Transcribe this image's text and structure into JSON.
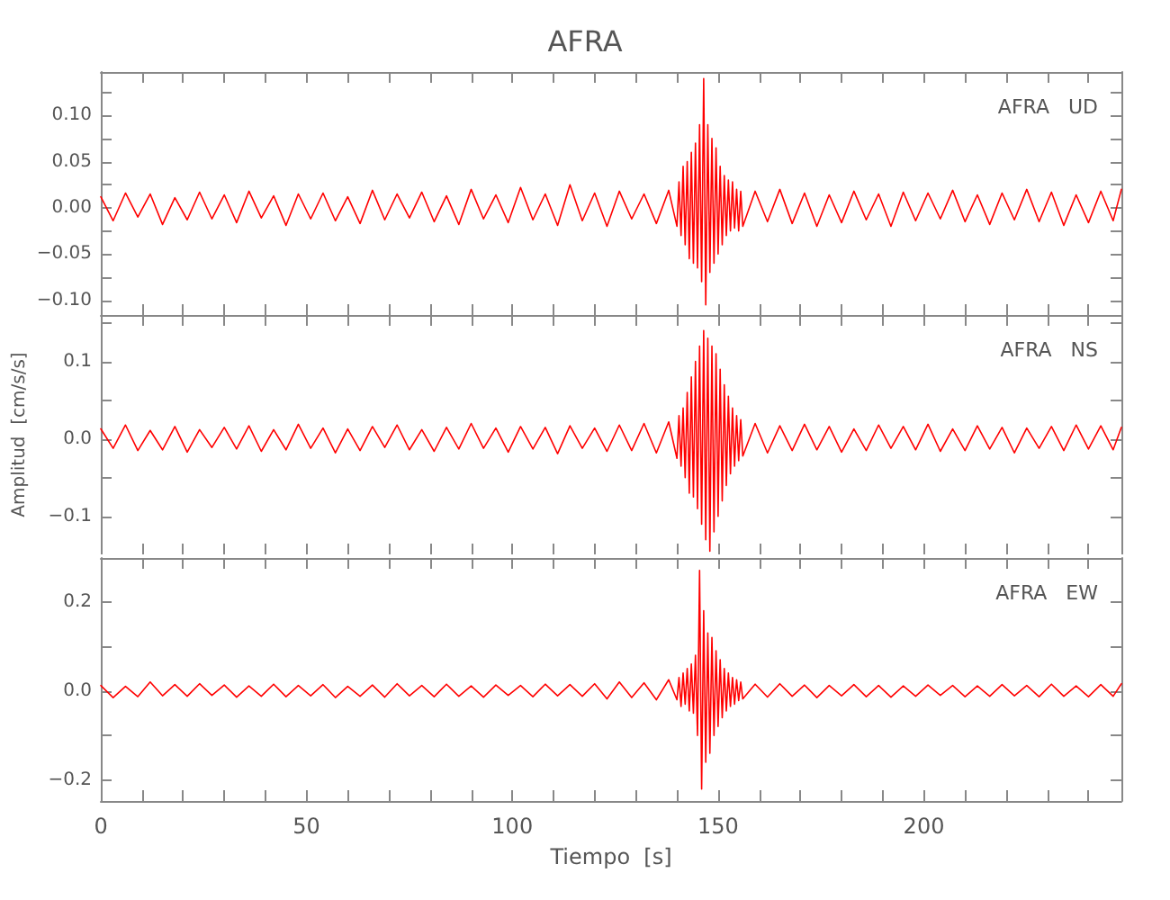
{
  "chart_data": [
    {
      "type": "line",
      "title": "AFRA",
      "annotations": [
        "AFRA   UD"
      ],
      "tick_labels": "y",
      "x": [
        0,
        3,
        6,
        9,
        12,
        15,
        18,
        21,
        24,
        27,
        30,
        33,
        36,
        39,
        42,
        45,
        48,
        51,
        54,
        57,
        60,
        63,
        66,
        69,
        72,
        75,
        78,
        81,
        84,
        87,
        90,
        93,
        96,
        99,
        102,
        105,
        108,
        111,
        114,
        117,
        120,
        123,
        126,
        129,
        132,
        135,
        138,
        140,
        140.5,
        141,
        141.5,
        142,
        142.5,
        143,
        143.5,
        144,
        144.5,
        145,
        145.5,
        146,
        146.5,
        147,
        147.5,
        148,
        148.5,
        149,
        149.5,
        150,
        150.5,
        151,
        151.5,
        152,
        152.5,
        153,
        153.5,
        154,
        154.5,
        155,
        155.5,
        156,
        159,
        162,
        165,
        168,
        171,
        174,
        177,
        180,
        183,
        186,
        189,
        192,
        195,
        198,
        201,
        204,
        207,
        210,
        213,
        216,
        219,
        222,
        225,
        228,
        231,
        234,
        237,
        240,
        243,
        246,
        248
      ],
      "series": [
        {
          "color": "#ff0000",
          "values": [
            0.012,
            -0.014,
            0.016,
            -0.01,
            0.015,
            -0.018,
            0.011,
            -0.013,
            0.017,
            -0.012,
            0.014,
            -0.016,
            0.018,
            -0.011,
            0.013,
            -0.019,
            0.015,
            -0.012,
            0.016,
            -0.014,
            0.012,
            -0.017,
            0.019,
            -0.013,
            0.015,
            -0.011,
            0.017,
            -0.015,
            0.013,
            -0.018,
            0.02,
            -0.012,
            0.014,
            -0.016,
            0.022,
            -0.013,
            0.015,
            -0.019,
            0.025,
            -0.014,
            0.016,
            -0.02,
            0.018,
            -0.012,
            0.015,
            -0.017,
            0.019,
            -0.02,
            0.028,
            -0.03,
            0.045,
            -0.04,
            0.05,
            -0.055,
            0.06,
            -0.06,
            0.07,
            -0.065,
            0.09,
            -0.08,
            0.14,
            -0.105,
            0.09,
            -0.07,
            0.075,
            -0.06,
            0.065,
            -0.05,
            0.045,
            -0.04,
            0.035,
            -0.03,
            0.03,
            -0.025,
            0.028,
            -0.022,
            0.02,
            -0.025,
            0.018,
            -0.02,
            0.018,
            -0.015,
            0.02,
            -0.017,
            0.016,
            -0.02,
            0.014,
            -0.016,
            0.018,
            -0.013,
            0.015,
            -0.02,
            0.017,
            -0.014,
            0.016,
            -0.012,
            0.019,
            -0.015,
            0.014,
            -0.018,
            0.016,
            -0.013,
            0.02,
            -0.015,
            0.017,
            -0.019,
            0.014,
            -0.016,
            0.018,
            -0.014,
            0.02
          ]
        }
      ],
      "xlim": [
        0,
        248
      ],
      "xticks": [
        0,
        {
          "value": 10,
          "label": null
        },
        {
          "value": 20,
          "label": null
        },
        {
          "value": 30,
          "label": null
        },
        {
          "value": 40,
          "label": null
        },
        50,
        {
          "value": 60,
          "label": null
        },
        {
          "value": 70,
          "label": null
        },
        {
          "value": 80,
          "label": null
        },
        {
          "value": 90,
          "label": null
        },
        100,
        {
          "value": 110,
          "label": null
        },
        {
          "value": 120,
          "label": null
        },
        {
          "value": 130,
          "label": null
        },
        {
          "value": 140,
          "label": null
        },
        150,
        {
          "value": 160,
          "label": null
        },
        {
          "value": 170,
          "label": null
        },
        {
          "value": 180,
          "label": null
        },
        {
          "value": 190,
          "label": null
        },
        200,
        {
          "value": 210,
          "label": null
        },
        {
          "value": 220,
          "label": null
        },
        {
          "value": 230,
          "label": null
        },
        {
          "value": 240,
          "label": null
        }
      ],
      "ylim": [
        -0.116,
        0.147
      ],
      "yticks": [
        {
          "value": -0.1,
          "label": "−0.10"
        },
        {
          "value": -0.075,
          "label": null
        },
        {
          "value": -0.05,
          "label": "−0.05"
        },
        {
          "value": -0.025,
          "label": null
        },
        {
          "value": 0,
          "label": "0.00"
        },
        {
          "value": 0.025,
          "label": null
        },
        {
          "value": 0.05,
          "label": "0.05"
        },
        {
          "value": 0.075,
          "label": null
        },
        {
          "value": 0.1,
          "label": "0.10"
        },
        {
          "value": 0.125,
          "label": null
        }
      ]
    },
    {
      "type": "line",
      "ylabel": "Amplitud  [cm/s/s]",
      "annotations": [
        "AFRA   NS"
      ],
      "tick_labels": "y",
      "x": [
        0,
        3,
        6,
        9,
        12,
        15,
        18,
        21,
        24,
        27,
        30,
        33,
        36,
        39,
        42,
        45,
        48,
        51,
        54,
        57,
        60,
        63,
        66,
        69,
        72,
        75,
        78,
        81,
        84,
        87,
        90,
        93,
        96,
        99,
        102,
        105,
        108,
        111,
        114,
        117,
        120,
        123,
        126,
        129,
        132,
        135,
        138,
        140,
        140.5,
        141,
        141.5,
        142,
        142.5,
        143,
        143.5,
        144,
        144.5,
        145,
        145.5,
        146,
        146.5,
        147,
        147.5,
        148,
        148.5,
        149,
        149.5,
        150,
        150.5,
        151,
        151.5,
        152,
        152.5,
        153,
        153.5,
        154,
        154.5,
        155,
        155.5,
        156,
        159,
        162,
        165,
        168,
        171,
        174,
        177,
        180,
        183,
        186,
        189,
        192,
        195,
        198,
        201,
        204,
        207,
        210,
        213,
        216,
        219,
        222,
        225,
        228,
        231,
        234,
        237,
        240,
        243,
        246,
        248
      ],
      "series": [
        {
          "color": "#ff0000",
          "values": [
            0.013,
            -0.012,
            0.018,
            -0.015,
            0.011,
            -0.014,
            0.016,
            -0.017,
            0.012,
            -0.011,
            0.015,
            -0.013,
            0.017,
            -0.016,
            0.012,
            -0.014,
            0.019,
            -0.012,
            0.014,
            -0.018,
            0.013,
            -0.015,
            0.016,
            -0.011,
            0.018,
            -0.014,
            0.012,
            -0.016,
            0.015,
            -0.013,
            0.02,
            -0.012,
            0.014,
            -0.017,
            0.016,
            -0.013,
            0.015,
            -0.019,
            0.017,
            -0.012,
            0.014,
            -0.016,
            0.018,
            -0.015,
            0.02,
            -0.018,
            0.022,
            -0.025,
            0.03,
            -0.035,
            0.04,
            -0.05,
            0.06,
            -0.07,
            0.08,
            -0.075,
            0.1,
            -0.09,
            0.12,
            -0.11,
            0.14,
            -0.13,
            0.13,
            -0.145,
            0.12,
            -0.12,
            0.11,
            -0.1,
            0.09,
            -0.08,
            0.07,
            -0.06,
            0.055,
            -0.045,
            0.04,
            -0.035,
            0.03,
            -0.028,
            0.025,
            -0.022,
            0.02,
            -0.018,
            0.017,
            -0.015,
            0.019,
            -0.014,
            0.016,
            -0.017,
            0.013,
            -0.015,
            0.018,
            -0.012,
            0.016,
            -0.014,
            0.019,
            -0.016,
            0.013,
            -0.015,
            0.017,
            -0.013,
            0.015,
            -0.018,
            0.014,
            -0.012,
            0.016,
            -0.015,
            0.018,
            -0.013,
            0.017,
            -0.014,
            0.015
          ]
        }
      ],
      "xlim": [
        0,
        248
      ],
      "xticks": [
        0,
        {
          "value": 10,
          "label": null
        },
        {
          "value": 20,
          "label": null
        },
        {
          "value": 30,
          "label": null
        },
        {
          "value": 40,
          "label": null
        },
        50,
        {
          "value": 60,
          "label": null
        },
        {
          "value": 70,
          "label": null
        },
        {
          "value": 80,
          "label": null
        },
        {
          "value": 90,
          "label": null
        },
        100,
        {
          "value": 110,
          "label": null
        },
        {
          "value": 120,
          "label": null
        },
        {
          "value": 130,
          "label": null
        },
        {
          "value": 140,
          "label": null
        },
        150,
        {
          "value": 160,
          "label": null
        },
        {
          "value": 170,
          "label": null
        },
        {
          "value": 180,
          "label": null
        },
        {
          "value": 190,
          "label": null
        },
        200,
        {
          "value": 210,
          "label": null
        },
        {
          "value": 220,
          "label": null
        },
        {
          "value": 230,
          "label": null
        },
        {
          "value": 240,
          "label": null
        }
      ],
      "ylim": [
        -0.149,
        0.16
      ],
      "yticks": [
        {
          "value": -0.1,
          "label": "−0.1"
        },
        {
          "value": -0.05,
          "label": null
        },
        {
          "value": 0,
          "label": "0.0"
        },
        {
          "value": 0.05,
          "label": null
        },
        {
          "value": 0.1,
          "label": "0.1"
        },
        {
          "value": 0.15,
          "label": null
        }
      ]
    },
    {
      "type": "line",
      "xlabel": "Tiempo  [s]",
      "annotations": [
        "AFRA   EW"
      ],
      "x": [
        0,
        3,
        6,
        9,
        12,
        15,
        18,
        21,
        24,
        27,
        30,
        33,
        36,
        39,
        42,
        45,
        48,
        51,
        54,
        57,
        60,
        63,
        66,
        69,
        72,
        75,
        78,
        81,
        84,
        87,
        90,
        93,
        96,
        99,
        102,
        105,
        108,
        111,
        114,
        117,
        120,
        123,
        126,
        129,
        132,
        135,
        138,
        140,
        140.5,
        141,
        141.5,
        142,
        142.5,
        143,
        143.5,
        144,
        144.5,
        145,
        145.5,
        146,
        146.5,
        147,
        147.5,
        148,
        148.5,
        149,
        149.5,
        150,
        150.5,
        151,
        151.5,
        152,
        152.5,
        153,
        153.5,
        154,
        154.5,
        155,
        155.5,
        156,
        159,
        162,
        165,
        168,
        171,
        174,
        177,
        180,
        183,
        186,
        189,
        192,
        195,
        198,
        201,
        204,
        207,
        210,
        213,
        216,
        219,
        222,
        225,
        228,
        231,
        234,
        237,
        240,
        243,
        246,
        248
      ],
      "series": [
        {
          "color": "#ff0000",
          "values": [
            0.012,
            -0.015,
            0.01,
            -0.013,
            0.02,
            -0.011,
            0.014,
            -0.012,
            0.016,
            -0.01,
            0.013,
            -0.014,
            0.011,
            -0.012,
            0.015,
            -0.013,
            0.012,
            -0.011,
            0.014,
            -0.015,
            0.01,
            -0.012,
            0.013,
            -0.014,
            0.016,
            -0.011,
            0.012,
            -0.013,
            0.015,
            -0.012,
            0.011,
            -0.014,
            0.013,
            -0.01,
            0.012,
            -0.013,
            0.015,
            -0.011,
            0.014,
            -0.012,
            0.016,
            -0.018,
            0.02,
            -0.015,
            0.018,
            -0.02,
            0.025,
            -0.02,
            0.03,
            -0.035,
            0.04,
            -0.03,
            0.05,
            -0.045,
            0.06,
            -0.05,
            0.08,
            -0.1,
            0.27,
            -0.22,
            0.18,
            -0.16,
            0.13,
            -0.14,
            0.12,
            -0.1,
            0.09,
            -0.08,
            0.07,
            -0.06,
            0.05,
            -0.045,
            0.04,
            -0.035,
            0.03,
            -0.03,
            0.025,
            -0.022,
            0.02,
            -0.018,
            0.015,
            -0.014,
            0.016,
            -0.012,
            0.013,
            -0.015,
            0.012,
            -0.011,
            0.014,
            -0.013,
            0.012,
            -0.014,
            0.011,
            -0.012,
            0.013,
            -0.01,
            0.012,
            -0.013,
            0.011,
            -0.012,
            0.014,
            -0.011,
            0.012,
            -0.013,
            0.015,
            -0.012,
            0.011,
            -0.013,
            0.014,
            -0.012,
            0.016
          ]
        }
      ],
      "xlim": [
        0,
        248
      ],
      "xticks": [
        0,
        {
          "value": 10,
          "label": null
        },
        {
          "value": 20,
          "label": null
        },
        {
          "value": 30,
          "label": null
        },
        {
          "value": 40,
          "label": null
        },
        50,
        {
          "value": 60,
          "label": null
        },
        {
          "value": 70,
          "label": null
        },
        {
          "value": 80,
          "label": null
        },
        {
          "value": 90,
          "label": null
        },
        100,
        {
          "value": 110,
          "label": null
        },
        {
          "value": 120,
          "label": null
        },
        {
          "value": 130,
          "label": null
        },
        {
          "value": 140,
          "label": null
        },
        150,
        {
          "value": 160,
          "label": null
        },
        {
          "value": 170,
          "label": null
        },
        {
          "value": 180,
          "label": null
        },
        {
          "value": 190,
          "label": null
        },
        200,
        {
          "value": 210,
          "label": null
        },
        {
          "value": 220,
          "label": null
        },
        {
          "value": 230,
          "label": null
        },
        {
          "value": 240,
          "label": null
        }
      ],
      "ylim": [
        -0.247,
        0.298
      ],
      "yticks": [
        {
          "value": -0.2,
          "label": "−0.2"
        },
        {
          "value": -0.1,
          "label": null
        },
        {
          "value": 0,
          "label": "0.0"
        },
        {
          "value": 0.1,
          "label": null
        },
        {
          "value": 0.2,
          "label": "0.2"
        }
      ]
    }
  ]
}
